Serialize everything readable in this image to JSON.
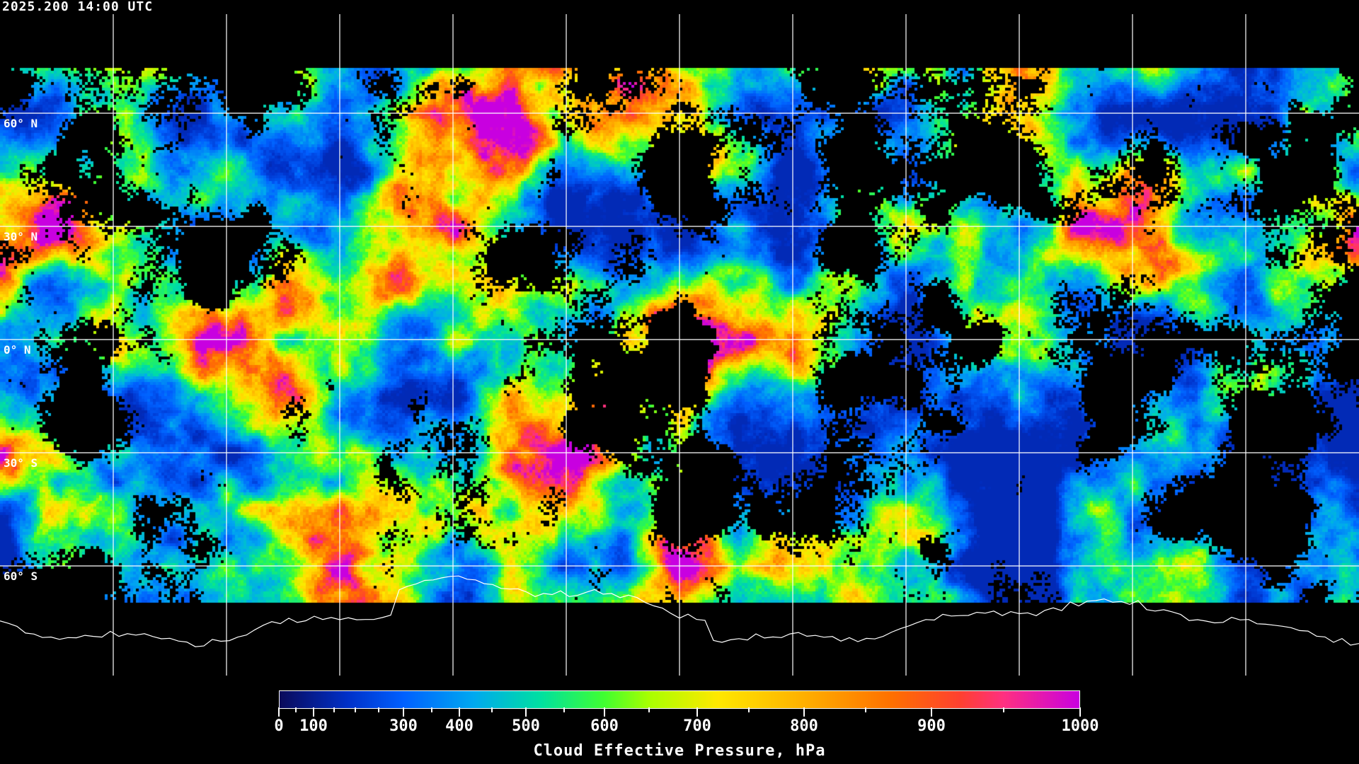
{
  "header": {
    "timestamp": "2025.200 14:00 UTC"
  },
  "map": {
    "projection": "equirectangular",
    "lat_labels": [
      "60° N",
      "30° N",
      "0° N",
      "30° S",
      "60° S"
    ],
    "lat_values": [
      60,
      30,
      0,
      -30,
      -60
    ],
    "lon_grid_spacing_deg": 30,
    "grid_color": "#ffffff",
    "coastline_color": "#ffffff",
    "no_data_color": "#000000"
  },
  "colorbar": {
    "title": "Cloud Effective Pressure, hPa",
    "range": [
      0,
      1000
    ],
    "tick_labels": [
      "0",
      "100",
      "300",
      "400",
      "500",
      "600",
      "700",
      "800",
      "900",
      "1000"
    ],
    "major_ticks": [
      0,
      100,
      300,
      400,
      500,
      600,
      700,
      800,
      900,
      1000
    ],
    "minor_ticks": [
      50,
      150,
      200,
      250,
      350,
      450,
      550,
      650,
      750,
      850,
      950
    ],
    "colors": [
      "#0a0a5a",
      "#0030c8",
      "#0060ff",
      "#00a8f0",
      "#00e0a0",
      "#40ff30",
      "#a8ff00",
      "#ffe800",
      "#ffb000",
      "#ff7000",
      "#ff4030",
      "#ff3080",
      "#c800e0"
    ]
  }
}
